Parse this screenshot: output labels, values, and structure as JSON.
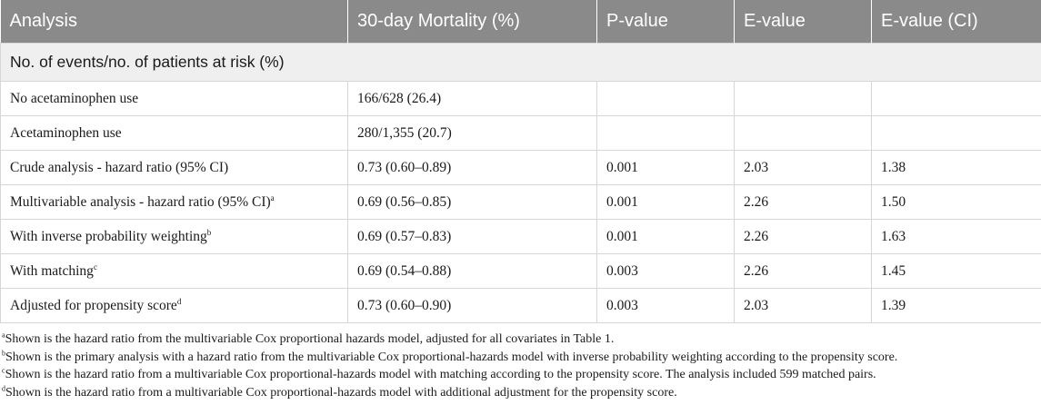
{
  "table": {
    "headers": [
      "Analysis",
      "30-day Mortality (%)",
      "P-value",
      "E-value",
      "E-value (CI)"
    ],
    "section_label": "No. of events/no. of patients at risk (%)",
    "rows": [
      {
        "label": "No acetaminophen use",
        "sup": "",
        "mortality": "166/628 (26.4)",
        "p": "",
        "e": "",
        "eci": ""
      },
      {
        "label": "Acetaminophen use",
        "sup": "",
        "mortality": "280/1,355 (20.7)",
        "p": "",
        "e": "",
        "eci": ""
      },
      {
        "label": "Crude analysis - hazard ratio (95% CI)",
        "sup": "",
        "mortality": "0.73 (0.60–0.89)",
        "p": "0.001",
        "e": "2.03",
        "eci": "1.38"
      },
      {
        "label": "Multivariable analysis - hazard ratio (95% CI)",
        "sup": "a",
        "mortality": "0.69 (0.56–0.85)",
        "p": "0.001",
        "e": "2.26",
        "eci": "1.50"
      },
      {
        "label": "With inverse probability weighting",
        "sup": "b",
        "mortality": "0.69 (0.57–0.83)",
        "p": "0.001",
        "e": "2.26",
        "eci": "1.63"
      },
      {
        "label": "With matching",
        "sup": "c",
        "mortality": "0.69 (0.54–0.88)",
        "p": "0.003",
        "e": "2.26",
        "eci": "1.45"
      },
      {
        "label": "Adjusted for propensity score",
        "sup": "d",
        "mortality": "0.73 (0.60–0.90)",
        "p": "0.003",
        "e": "2.03",
        "eci": "1.39"
      }
    ]
  },
  "footnotes": [
    {
      "mark": "a",
      "text": "Shown is the hazard ratio from the multivariable Cox proportional hazards model, adjusted for all covariates in Table 1."
    },
    {
      "mark": "b",
      "text": "Shown is the primary analysis with a hazard ratio from the multivariable Cox proportional-hazards model with inverse probability weighting according to the propensity score."
    },
    {
      "mark": "c",
      "text": "Shown is the hazard ratio from a multivariable Cox proportional-hazards model with matching according to the propensity score. The analysis included 599 matched pairs."
    },
    {
      "mark": "d",
      "text": "Shown is the hazard ratio from a multivariable Cox proportional-hazards model with additional adjustment for the propensity score."
    }
  ]
}
